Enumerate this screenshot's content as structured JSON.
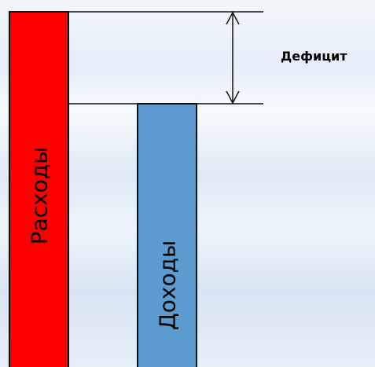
{
  "diagram": {
    "expenses_label": "Расходы",
    "income_label": "Доходы",
    "deficit_label": "Дефицит",
    "colors": {
      "expenses": "#ff0000",
      "income": "#5b9bd0",
      "lines": "#111111"
    }
  }
}
